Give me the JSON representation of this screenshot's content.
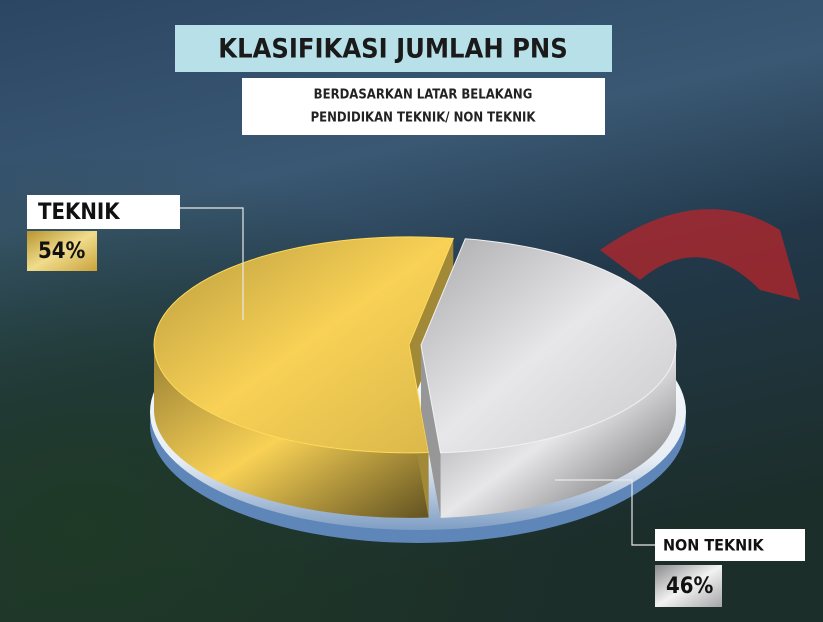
{
  "chart_data": {
    "type": "pie",
    "title": "KLASIFIKASI JUMLAH PNS",
    "subtitle": [
      "BERDASARKAN LATAR BELAKANG",
      "PENDIDIKAN TEKNIK/ NON TEKNIK"
    ],
    "categories": [
      "TEKNIK",
      "NON TEKNIK"
    ],
    "values": [
      54,
      46
    ],
    "value_labels": [
      "54%",
      "46%"
    ],
    "colors": [
      "#d8b64a",
      "#c9c9cb"
    ]
  }
}
